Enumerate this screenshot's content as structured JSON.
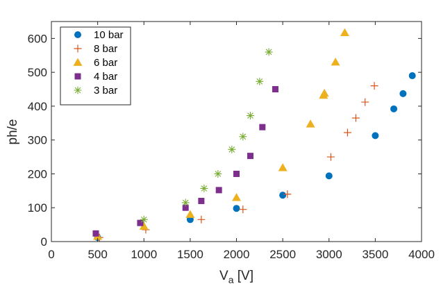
{
  "chart_data": {
    "type": "scatter",
    "xlabel": "V",
    "xlabel_sub": "a",
    "xlabel_unit": " [V]",
    "ylabel": "ph/e",
    "xlim": [
      0,
      4000
    ],
    "ylim": [
      0,
      650
    ],
    "xticks": [
      0,
      500,
      1000,
      1500,
      2000,
      2500,
      3000,
      3500,
      4000
    ],
    "yticks": [
      0,
      100,
      200,
      300,
      400,
      500,
      600
    ],
    "xtick_labels": [
      "0",
      "500",
      "1000",
      "1500",
      "2000",
      "2500",
      "3000",
      "3500",
      "4000"
    ],
    "ytick_labels": [
      "0",
      "100",
      "200",
      "300",
      "400",
      "500",
      "600"
    ],
    "grid": false,
    "legend_position": "top-left",
    "series": [
      {
        "name": "10  bar",
        "marker": "circle",
        "color": "#0072BD",
        "x": [
          500,
          1500,
          2000,
          2500,
          3000,
          3500,
          3700,
          3800,
          3900
        ],
        "y": [
          12,
          65,
          98,
          137,
          194,
          313,
          392,
          437,
          490
        ]
      },
      {
        "name": "8  bar",
        "marker": "plus",
        "color": "#D95319",
        "x": [
          520,
          1020,
          1620,
          2070,
          2550,
          3020,
          3200,
          3290,
          3390,
          3490
        ],
        "y": [
          12,
          35,
          65,
          95,
          140,
          250,
          322,
          365,
          412,
          460
        ]
      },
      {
        "name": "6  bar",
        "marker": "triangle",
        "color": "#EDB120",
        "x": [
          500,
          1000,
          1500,
          2000,
          2500,
          2800,
          2940,
          2950,
          3070,
          3170
        ],
        "y": [
          15,
          45,
          80,
          130,
          218,
          347,
          432,
          438,
          530,
          617
        ]
      },
      {
        "name": "4  bar",
        "marker": "square",
        "color": "#7E2F8E",
        "x": [
          480,
          960,
          1450,
          1620,
          1810,
          2000,
          2150,
          2280,
          2420
        ],
        "y": [
          24,
          55,
          100,
          120,
          152,
          200,
          253,
          338,
          450
        ]
      },
      {
        "name": "3  bar",
        "marker": "asterisk",
        "color": "#77AC30",
        "x": [
          1000,
          1450,
          1650,
          1800,
          1950,
          2070,
          2150,
          2250,
          2350
        ],
        "y": [
          65,
          115,
          157,
          200,
          272,
          310,
          372,
          473,
          560
        ]
      }
    ]
  }
}
